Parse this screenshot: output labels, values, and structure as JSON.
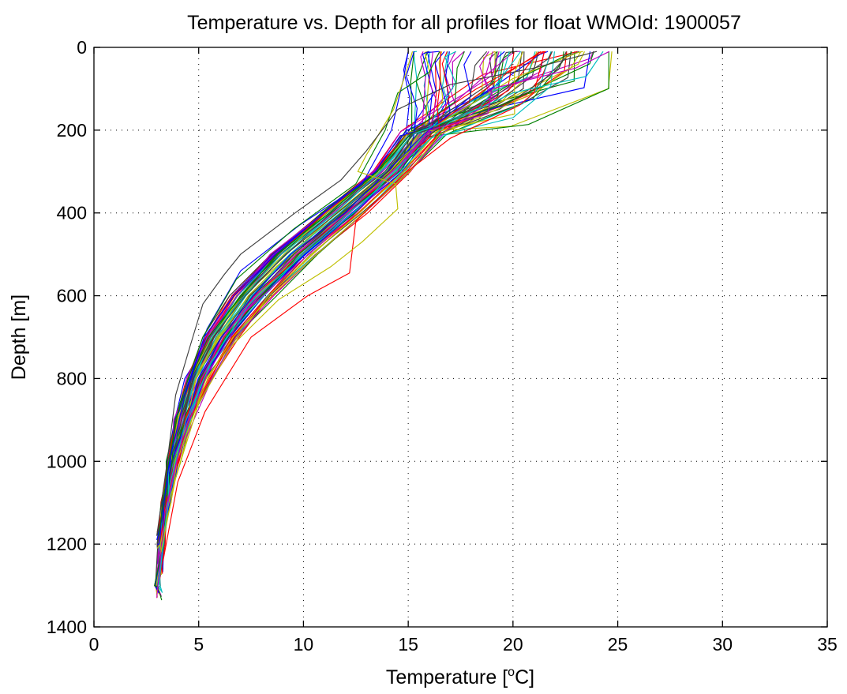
{
  "chart_data": {
    "type": "line",
    "title": "Temperature vs. Depth for all profiles for float WMOId: 1900057",
    "xlabel_main": "Temperature [",
    "xlabel_sup": "o",
    "xlabel_end": "C]",
    "ylabel": "Depth [m]",
    "xlim": [
      0,
      35
    ],
    "ylim": [
      0,
      1400
    ],
    "y_reversed": true,
    "x_ticks": [
      "0",
      "5",
      "10",
      "15",
      "20",
      "25",
      "30",
      "35"
    ],
    "y_ticks": [
      "0",
      "200",
      "400",
      "600",
      "800",
      "1000",
      "1200",
      "1400"
    ],
    "grid": true,
    "legend": "none",
    "profile_colors": [
      "#0000ff",
      "#008000",
      "#ff0000",
      "#00bfbf",
      "#bf00bf",
      "#bfbf00",
      "#404040"
    ],
    "series_count": 70,
    "series": [
      {
        "color": "#0000ff",
        "values": [
          [
            15.0,
            10
          ],
          [
            14.8,
            70
          ],
          [
            14.2,
            200
          ],
          [
            12.8,
            330
          ],
          [
            9.8,
            430
          ],
          [
            7.0,
            540
          ],
          [
            5.4,
            680
          ],
          [
            4.3,
            850
          ],
          [
            3.6,
            1000
          ],
          [
            3.2,
            1150
          ],
          [
            3.0,
            1190
          ]
        ]
      },
      {
        "color": "#008000",
        "values": [
          [
            16.5,
            10
          ],
          [
            16.0,
            60
          ],
          [
            14.5,
            110
          ],
          [
            13.9,
            200
          ],
          [
            12.5,
            330
          ],
          [
            9.5,
            440
          ],
          [
            6.8,
            560
          ],
          [
            5.2,
            700
          ],
          [
            4.1,
            860
          ],
          [
            3.5,
            1020
          ],
          [
            3.1,
            1180
          ]
        ]
      },
      {
        "color": "#ff0000",
        "values": [
          [
            21.5,
            10
          ],
          [
            21.0,
            110
          ],
          [
            20.3,
            140
          ],
          [
            17.0,
            220
          ],
          [
            14.7,
            310
          ],
          [
            12.5,
            420
          ],
          [
            12.2,
            545
          ],
          [
            10.2,
            600
          ],
          [
            7.5,
            700
          ],
          [
            5.3,
            880
          ],
          [
            4.0,
            1050
          ],
          [
            3.3,
            1240
          ]
        ]
      },
      {
        "color": "#00bfbf",
        "values": [
          [
            24.3,
            10
          ],
          [
            23.5,
            70
          ],
          [
            20.0,
            110
          ],
          [
            17.0,
            180
          ],
          [
            14.7,
            280
          ],
          [
            12.6,
            390
          ],
          [
            10.0,
            500
          ],
          [
            7.4,
            620
          ],
          [
            5.6,
            760
          ],
          [
            4.4,
            900
          ],
          [
            3.6,
            1060
          ],
          [
            3.1,
            1300
          ]
        ]
      },
      {
        "color": "#bf00bf",
        "values": [
          [
            24.6,
            10
          ],
          [
            23.0,
            50
          ],
          [
            19.0,
            100
          ],
          [
            18.8,
            160
          ],
          [
            16.0,
            200
          ],
          [
            14.5,
            300
          ],
          [
            12.3,
            410
          ],
          [
            9.8,
            520
          ],
          [
            7.2,
            640
          ],
          [
            5.4,
            790
          ],
          [
            4.2,
            950
          ],
          [
            3.4,
            1120
          ],
          [
            3.0,
            1330
          ]
        ]
      },
      {
        "color": "#bfbf00",
        "values": [
          [
            15.2,
            10
          ],
          [
            14.9,
            60
          ],
          [
            14.3,
            150
          ],
          [
            13.0,
            260
          ],
          [
            12.6,
            300
          ],
          [
            14.4,
            330
          ],
          [
            14.5,
            390
          ],
          [
            12.8,
            470
          ],
          [
            11.3,
            530
          ],
          [
            8.8,
            610
          ],
          [
            6.6,
            720
          ],
          [
            5.0,
            860
          ],
          [
            3.9,
            1040
          ],
          [
            3.2,
            1220
          ]
        ]
      },
      {
        "color": "#404040",
        "values": [
          [
            24.0,
            10
          ],
          [
            21.0,
            50
          ],
          [
            17.0,
            90
          ],
          [
            14.5,
            150
          ],
          [
            13.0,
            250
          ],
          [
            11.8,
            320
          ],
          [
            9.6,
            400
          ],
          [
            7.0,
            500
          ],
          [
            6.2,
            550
          ],
          [
            5.2,
            620
          ],
          [
            4.6,
            720
          ],
          [
            3.9,
            840
          ],
          [
            3.5,
            1000
          ],
          [
            3.0,
            1180
          ]
        ]
      }
    ]
  }
}
